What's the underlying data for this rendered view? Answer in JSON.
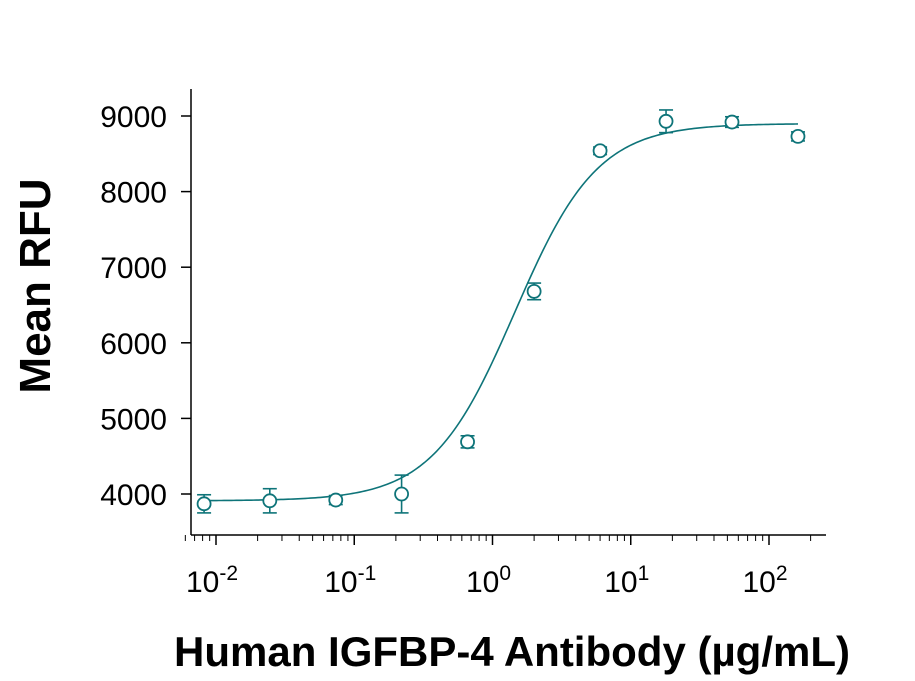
{
  "chart_data": {
    "type": "scatter",
    "title": "",
    "xlabel": "Human IGFBP-4 Antibody (µg/mL)",
    "ylabel": "Mean RFU",
    "x_scale": "log",
    "xlim": [
      0.0055,
      210
    ],
    "ylim": [
      3700,
      9350
    ],
    "x_tick_base": "10",
    "x_ticks": [
      {
        "value": 0.01,
        "exp": "-2"
      },
      {
        "value": 0.1,
        "exp": "-1"
      },
      {
        "value": 1,
        "exp": "0"
      },
      {
        "value": 10,
        "exp": "1"
      },
      {
        "value": 100,
        "exp": "2"
      }
    ],
    "y_ticks": [
      {
        "value": 4000,
        "label": "4000"
      },
      {
        "value": 5000,
        "label": "5000"
      },
      {
        "value": 6000,
        "label": "6000"
      },
      {
        "value": 7000,
        "label": "7000"
      },
      {
        "value": 8000,
        "label": "8000"
      },
      {
        "value": 9000,
        "label": "9000"
      }
    ],
    "series": [
      {
        "name": "Mean RFU",
        "color": "#0e7479",
        "marker": "open-circle",
        "x": [
          0.0082,
          0.0245,
          0.0735,
          0.22,
          0.66,
          2.0,
          6.0,
          18.0,
          54.0,
          162.0
        ],
        "y": [
          3870,
          3910,
          3920,
          4000,
          4690,
          6680,
          8540,
          8930,
          8920,
          8730
        ],
        "error": [
          120,
          160,
          60,
          250,
          80,
          110,
          50,
          150,
          70,
          60
        ]
      }
    ],
    "fit": {
      "model": "4PL",
      "bottom": 3910,
      "top": 8900,
      "ec50": 1.45,
      "hill": 1.45,
      "color": "#0e7479"
    }
  }
}
